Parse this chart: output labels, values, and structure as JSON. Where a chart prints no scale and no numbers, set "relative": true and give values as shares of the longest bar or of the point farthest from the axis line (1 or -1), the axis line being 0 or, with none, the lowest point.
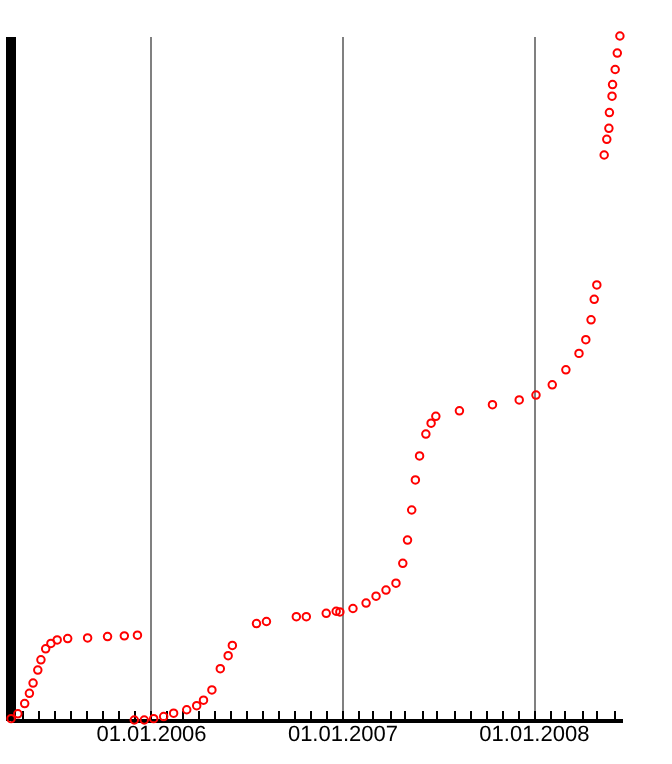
{
  "chart_data": {
    "type": "scatter",
    "relative": true,
    "grid": "x",
    "marker": "circle",
    "tick_labels": "x",
    "xlim": [
      "2005-04-08",
      "2008-06-18"
    ],
    "xticks": [
      {
        "value": "2005-05-01",
        "label": null
      },
      {
        "value": "2005-06-01",
        "label": null
      },
      {
        "value": "2005-07-01",
        "label": null
      },
      {
        "value": "2005-08-01",
        "label": null
      },
      {
        "value": "2005-09-01",
        "label": null
      },
      {
        "value": "2005-10-01",
        "label": null
      },
      {
        "value": "2005-11-01",
        "label": null
      },
      {
        "value": "2005-12-01",
        "label": null
      },
      {
        "value": "2006-01-01",
        "label": "01.01.2006"
      },
      {
        "value": "2006-02-01",
        "label": null
      },
      {
        "value": "2006-03-01",
        "label": null
      },
      {
        "value": "2006-04-01",
        "label": null
      },
      {
        "value": "2006-05-01",
        "label": null
      },
      {
        "value": "2006-06-01",
        "label": null
      },
      {
        "value": "2006-07-01",
        "label": null
      },
      {
        "value": "2006-08-01",
        "label": null
      },
      {
        "value": "2006-09-01",
        "label": null
      },
      {
        "value": "2006-10-01",
        "label": null
      },
      {
        "value": "2006-11-01",
        "label": null
      },
      {
        "value": "2006-12-01",
        "label": null
      },
      {
        "value": "2007-01-01",
        "label": "01.01.2007"
      },
      {
        "value": "2007-02-01",
        "label": null
      },
      {
        "value": "2007-03-01",
        "label": null
      },
      {
        "value": "2007-04-01",
        "label": null
      },
      {
        "value": "2007-05-01",
        "label": null
      },
      {
        "value": "2007-06-01",
        "label": null
      },
      {
        "value": "2007-07-01",
        "label": null
      },
      {
        "value": "2007-08-01",
        "label": null
      },
      {
        "value": "2007-09-01",
        "label": null
      },
      {
        "value": "2007-10-01",
        "label": null
      },
      {
        "value": "2007-11-01",
        "label": null
      },
      {
        "value": "2007-12-01",
        "label": null
      },
      {
        "value": "2008-01-01",
        "label": "01.01.2008"
      },
      {
        "value": "2008-02-01",
        "label": null
      },
      {
        "value": "2008-03-01",
        "label": null
      },
      {
        "value": "2008-04-01",
        "label": null
      },
      {
        "value": "2008-05-01",
        "label": null
      },
      {
        "value": "2008-06-01",
        "label": null
      }
    ],
    "x": [
      "2005-04-10",
      "2005-04-23",
      "2005-05-06",
      "2005-05-15",
      "2005-05-22",
      "2005-05-31",
      "2005-06-06",
      "2005-06-15",
      "2005-06-25",
      "2005-07-07",
      "2005-07-27",
      "2005-09-03",
      "2005-10-11",
      "2005-11-12",
      "2005-12-07",
      "2005-12-01",
      "2005-12-20",
      "2006-01-07",
      "2006-01-26",
      "2006-02-14",
      "2006-03-11",
      "2006-03-30",
      "2006-04-12",
      "2006-04-28",
      "2006-05-14",
      "2006-05-29",
      "2006-06-06",
      "2006-07-22",
      "2006-08-10",
      "2006-10-06",
      "2006-10-25",
      "2006-12-02",
      "2006-12-21",
      "2006-12-28",
      "2007-01-22",
      "2007-02-16",
      "2007-03-07",
      "2007-03-26",
      "2007-04-14",
      "2007-04-27",
      "2007-05-06",
      "2007-05-14",
      "2007-05-21",
      "2007-05-29",
      "2007-06-10",
      "2007-06-20",
      "2007-06-29",
      "2007-08-13",
      "2007-10-15",
      "2007-12-05",
      "2008-01-06",
      "2008-02-06",
      "2008-03-03",
      "2008-03-28",
      "2008-04-10",
      "2008-04-20",
      "2008-04-26",
      "2008-05-01",
      "2008-05-15",
      "2008-05-20",
      "2008-05-24",
      "2008-05-25",
      "2008-05-30",
      "2008-05-31",
      "2008-06-05",
      "2008-06-09",
      "2008-06-14"
    ],
    "series": [
      {
        "color": "#ff0000",
        "values": [
          0.002,
          0.009,
          0.024,
          0.039,
          0.054,
          0.073,
          0.088,
          0.104,
          0.112,
          0.117,
          0.119,
          0.12,
          0.122,
          0.123,
          0.124,
          0,
          0,
          0.002,
          0.005,
          0.01,
          0.015,
          0.021,
          0.029,
          0.044,
          0.075,
          0.094,
          0.109,
          0.141,
          0.144,
          0.151,
          0.151,
          0.156,
          0.159,
          0.158,
          0.163,
          0.171,
          0.181,
          0.19,
          0.2,
          0.229,
          0.263,
          0.307,
          0.351,
          0.386,
          0.418,
          0.434,
          0.444,
          0.452,
          0.461,
          0.468,
          0.475,
          0.49,
          0.512,
          0.536,
          0.556,
          0.585,
          0.615,
          0.636,
          0.826,
          0.849,
          0.865,
          0.888,
          0.912,
          0.929,
          0.951,
          0.975,
          1
        ]
      }
    ]
  }
}
